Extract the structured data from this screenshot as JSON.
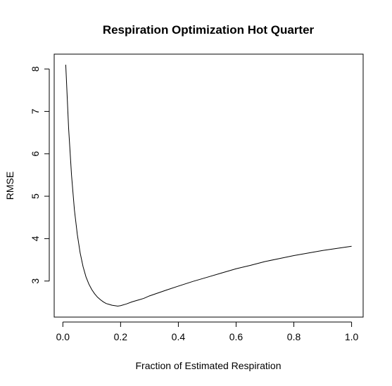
{
  "chart_data": {
    "type": "line",
    "title": "Respiration Optimization Hot Quarter",
    "xlabel": "Fraction of Estimated Respiration",
    "ylabel": "RMSE",
    "xlim": [
      -0.03,
      1.04
    ],
    "ylim": [
      2.15,
      8.35
    ],
    "grid": false,
    "legend": "none",
    "x_ticks": [
      0.0,
      0.2,
      0.4,
      0.6,
      0.8,
      1.0
    ],
    "x_tick_labels": [
      "0.0",
      "0.2",
      "0.4",
      "0.6",
      "0.8",
      "1.0"
    ],
    "y_ticks": [
      3,
      4,
      5,
      6,
      7,
      8
    ],
    "y_tick_labels": [
      "3",
      "4",
      "5",
      "6",
      "7",
      "8"
    ],
    "line_color": "#000000",
    "series": [
      {
        "x": [
          0.01,
          0.02,
          0.03,
          0.04,
          0.05,
          0.06,
          0.07,
          0.08,
          0.09,
          0.1,
          0.11,
          0.12,
          0.13,
          0.14,
          0.15,
          0.16,
          0.17,
          0.18,
          0.19,
          0.2,
          0.22,
          0.24,
          0.26,
          0.28,
          0.3,
          0.33,
          0.36,
          0.4,
          0.45,
          0.5,
          0.55,
          0.6,
          0.65,
          0.7,
          0.75,
          0.8,
          0.85,
          0.9,
          0.95,
          1.0
        ],
        "values": [
          8.1,
          6.6,
          5.5,
          4.68,
          4.1,
          3.66,
          3.34,
          3.1,
          2.93,
          2.8,
          2.7,
          2.62,
          2.56,
          2.51,
          2.47,
          2.45,
          2.43,
          2.42,
          2.41,
          2.42,
          2.46,
          2.51,
          2.55,
          2.59,
          2.65,
          2.72,
          2.79,
          2.88,
          2.99,
          3.09,
          3.19,
          3.29,
          3.37,
          3.46,
          3.53,
          3.6,
          3.66,
          3.72,
          3.77,
          3.82
        ]
      }
    ]
  }
}
